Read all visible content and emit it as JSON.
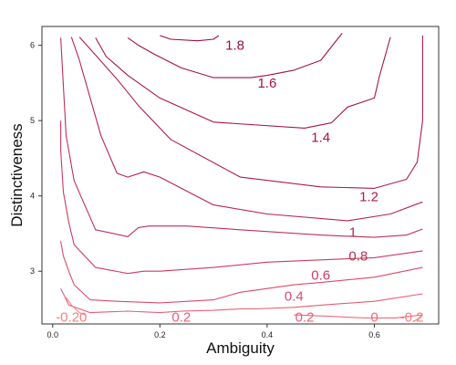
{
  "chart_data": {
    "type": "contour",
    "title": "",
    "xlabel": "Ambiguity",
    "ylabel": "Distinctiveness",
    "xlim": [
      -0.02,
      0.72
    ],
    "ylim": [
      2.3,
      6.25
    ],
    "grid": false,
    "x_ticks": [
      {
        "value": 0.0,
        "label": "0.0"
      },
      {
        "value": 0.2,
        "label": "0.2"
      },
      {
        "value": 0.4,
        "label": "0.4"
      },
      {
        "value": 0.6,
        "label": "0.6"
      }
    ],
    "y_ticks": [
      {
        "value": 3,
        "label": "3"
      },
      {
        "value": 4,
        "label": "4"
      },
      {
        "value": 5,
        "label": "5"
      },
      {
        "value": 6,
        "label": "6"
      }
    ],
    "colors": {
      "low": "#f08080",
      "high": "#a0103a",
      "frame": "#333333"
    },
    "contours": [
      {
        "level": 1.8,
        "color": "#9e0f3b",
        "points": [
          [
            0.31,
            6.13
          ],
          [
            0.3,
            6.08
          ],
          [
            0.27,
            6.06
          ],
          [
            0.22,
            6.08
          ],
          [
            0.2,
            6.13
          ]
        ],
        "labels": [
          {
            "text": "1.8",
            "x": 0.34,
            "y": 6.0
          }
        ]
      },
      {
        "level": 1.6,
        "color": "#a2133e",
        "points": [
          [
            0.54,
            6.16
          ],
          [
            0.5,
            5.8
          ],
          [
            0.45,
            5.67
          ],
          [
            0.4,
            5.6
          ],
          [
            0.37,
            5.57
          ],
          [
            0.3,
            5.57
          ],
          [
            0.24,
            5.7
          ],
          [
            0.19,
            5.88
          ],
          [
            0.16,
            6.0
          ],
          [
            0.14,
            6.1
          ]
        ],
        "labels": [
          {
            "text": "1.6",
            "x": 0.4,
            "y": 5.5
          }
        ]
      },
      {
        "level": 1.4,
        "color": "#a61640",
        "points": [
          [
            0.63,
            6.11
          ],
          [
            0.61,
            5.6
          ],
          [
            0.6,
            5.3
          ],
          [
            0.55,
            5.18
          ],
          [
            0.52,
            4.97
          ],
          [
            0.47,
            4.9
          ],
          [
            0.3,
            4.98
          ],
          [
            0.2,
            5.3
          ],
          [
            0.14,
            5.6
          ],
          [
            0.1,
            5.85
          ],
          [
            0.08,
            6.1
          ]
        ],
        "labels": [
          {
            "text": "1.4",
            "x": 0.5,
            "y": 4.78
          }
        ]
      },
      {
        "level": 1.2,
        "color": "#ad1c46",
        "points": [
          [
            0.69,
            6.13
          ],
          [
            0.69,
            5.0
          ],
          [
            0.68,
            4.45
          ],
          [
            0.66,
            4.22
          ],
          [
            0.6,
            4.1
          ],
          [
            0.5,
            4.12
          ],
          [
            0.35,
            4.25
          ],
          [
            0.22,
            4.75
          ],
          [
            0.16,
            5.2
          ],
          [
            0.12,
            5.55
          ],
          [
            0.07,
            5.95
          ],
          [
            0.05,
            6.11
          ]
        ],
        "labels": [
          {
            "text": "1.2",
            "x": 0.59,
            "y": 3.99
          }
        ]
      },
      {
        "level": 1.0,
        "color": "#b6244d",
        "points": [
          [
            0.69,
            3.92
          ],
          [
            0.63,
            3.76
          ],
          [
            0.55,
            3.67
          ],
          [
            0.4,
            3.76
          ],
          [
            0.3,
            3.88
          ],
          [
            0.2,
            4.25
          ],
          [
            0.17,
            4.32
          ],
          [
            0.14,
            4.25
          ],
          [
            0.12,
            4.3
          ],
          [
            0.09,
            4.8
          ],
          [
            0.05,
            5.8
          ],
          [
            0.035,
            6.11
          ]
        ],
        "labels": [
          {
            "text": "1",
            "x": 0.56,
            "y": 3.52
          }
        ]
      },
      {
        "level": 0.8,
        "color": "#c02e56",
        "points": [
          [
            0.69,
            3.56
          ],
          [
            0.66,
            3.48
          ],
          [
            0.6,
            3.45
          ],
          [
            0.5,
            3.48
          ],
          [
            0.35,
            3.55
          ],
          [
            0.25,
            3.6
          ],
          [
            0.18,
            3.6
          ],
          [
            0.16,
            3.58
          ],
          [
            0.14,
            3.46
          ],
          [
            0.08,
            3.55
          ],
          [
            0.04,
            4.2
          ],
          [
            0.025,
            4.8
          ],
          [
            0.015,
            6.1
          ]
        ],
        "labels": [
          {
            "text": "0.8",
            "x": 0.57,
            "y": 3.2
          }
        ]
      },
      {
        "level": 0.6,
        "color": "#cd3a61",
        "points": [
          [
            0.69,
            3.27
          ],
          [
            0.6,
            3.18
          ],
          [
            0.5,
            3.15
          ],
          [
            0.4,
            3.12
          ],
          [
            0.3,
            3.05
          ],
          [
            0.2,
            3.0
          ],
          [
            0.17,
            3.0
          ],
          [
            0.14,
            2.97
          ],
          [
            0.08,
            3.05
          ],
          [
            0.04,
            3.35
          ],
          [
            0.03,
            3.65
          ],
          [
            0.02,
            4.05
          ],
          [
            0.015,
            4.6
          ],
          [
            0.015,
            5.0
          ]
        ],
        "labels": [
          {
            "text": "0.6",
            "x": 0.5,
            "y": 2.95
          }
        ]
      },
      {
        "level": 0.4,
        "color": "#dc4a6d",
        "points": [
          [
            0.69,
            3.05
          ],
          [
            0.6,
            2.92
          ],
          [
            0.5,
            2.85
          ],
          [
            0.45,
            2.82
          ],
          [
            0.35,
            2.72
          ],
          [
            0.3,
            2.62
          ],
          [
            0.2,
            2.58
          ],
          [
            0.12,
            2.6
          ],
          [
            0.07,
            2.62
          ],
          [
            0.04,
            2.82
          ],
          [
            0.03,
            3.0
          ],
          [
            0.02,
            3.2
          ],
          [
            0.015,
            3.4
          ]
        ],
        "labels": [
          {
            "text": "0.4",
            "x": 0.45,
            "y": 2.67
          }
        ]
      },
      {
        "level": 0.2,
        "color": "#e85d76",
        "points": [
          [
            0.69,
            2.7
          ],
          [
            0.6,
            2.6
          ],
          [
            0.5,
            2.55
          ],
          [
            0.45,
            2.52
          ],
          [
            0.38,
            2.5
          ],
          [
            0.35,
            2.5
          ],
          [
            0.3,
            2.48
          ],
          [
            0.24,
            2.47
          ],
          [
            0.2,
            2.45
          ],
          [
            0.14,
            2.47
          ],
          [
            0.07,
            2.45
          ],
          [
            0.03,
            2.55
          ],
          [
            0.02,
            2.7
          ],
          [
            0.015,
            2.77
          ]
        ],
        "labels": [
          {
            "text": "0.2",
            "x": 0.47,
            "y": 2.39
          },
          {
            "text": "0.2",
            "x": 0.24,
            "y": 2.39
          }
        ]
      },
      {
        "level": 0.0,
        "color": "#f06a7a",
        "points": [
          [
            0.69,
            2.42
          ],
          [
            0.64,
            2.38
          ],
          [
            0.58,
            2.38
          ],
          [
            0.52,
            2.4
          ],
          [
            0.45,
            2.42
          ]
        ],
        "labels": [
          {
            "text": "0",
            "x": 0.6,
            "y": 2.39
          }
        ]
      },
      {
        "level": -0.2,
        "color": "#f58080",
        "points": [
          [
            0.688,
            2.41
          ],
          [
            0.68,
            2.36
          ],
          [
            0.672,
            2.33
          ]
        ],
        "labels": [
          {
            "text": "-0.2",
            "x": 0.67,
            "y": 2.39
          },
          {
            "text": "-0.20",
            "x": 0.035,
            "y": 2.39
          }
        ]
      },
      {
        "level": -0.2,
        "color": "#f58080",
        "points": [
          [
            0.06,
            2.42
          ],
          [
            0.05,
            2.45
          ],
          [
            0.035,
            2.55
          ],
          [
            0.025,
            2.65
          ]
        ],
        "labels": []
      }
    ]
  }
}
